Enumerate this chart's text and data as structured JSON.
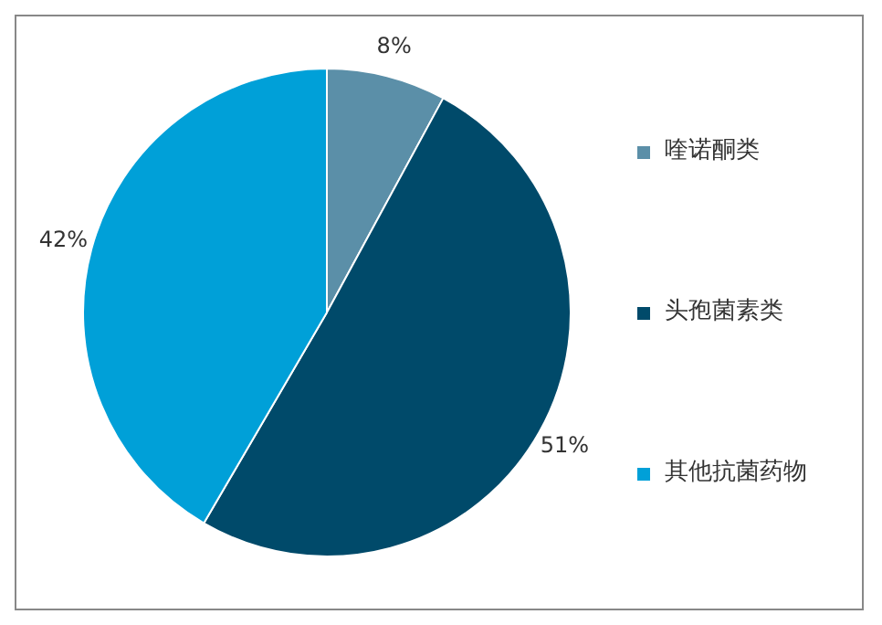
{
  "chart_data": {
    "type": "pie",
    "categories": [
      "喹诺酮类",
      "头孢菌素类",
      "其他抗菌药物"
    ],
    "values": [
      8,
      51,
      42
    ],
    "value_labels": [
      "8%",
      "51%",
      "42%"
    ],
    "colors": [
      "#5b8fa8",
      "#004a6a",
      "#00a0d8"
    ],
    "legend": "right"
  }
}
